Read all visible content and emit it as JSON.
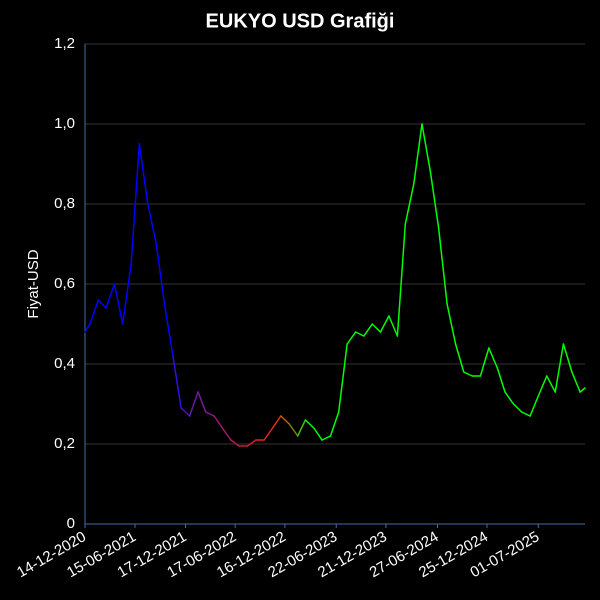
{
  "chart_data": {
    "type": "line",
    "title": "EUKYO USD Grafiği",
    "y_label": "Fiyat-USD",
    "x": [
      "14-12-2020",
      "01-01-2021",
      "01-02-2021",
      "01-03-2021",
      "01-04-2021",
      "01-05-2021",
      "01-06-2021",
      "01-07-2021",
      "01-08-2021",
      "01-09-2021",
      "01-10-2021",
      "01-11-2021",
      "01-12-2021",
      "01-01-2022",
      "01-02-2022",
      "01-03-2022",
      "01-04-2022",
      "01-05-2022",
      "01-06-2022",
      "01-07-2022",
      "01-08-2022",
      "01-09-2022",
      "01-10-2022",
      "01-11-2022",
      "01-12-2022",
      "01-01-2023",
      "01-02-2023",
      "01-03-2023",
      "01-04-2023",
      "01-05-2023",
      "01-06-2023",
      "01-07-2023",
      "01-08-2023",
      "01-09-2023",
      "01-10-2023",
      "01-11-2023",
      "01-12-2023",
      "01-01-2024",
      "01-02-2024",
      "01-03-2024",
      "01-04-2024",
      "01-05-2024",
      "01-06-2024",
      "01-07-2024",
      "01-08-2024",
      "01-09-2024",
      "01-10-2024",
      "01-11-2024",
      "01-12-2024",
      "01-01-2025",
      "01-02-2025",
      "01-03-2025",
      "01-04-2025",
      "01-05-2025",
      "01-06-2025",
      "01-07-2025",
      "01-08-2025",
      "01-09-2025",
      "01-10-2025",
      "01-11-2025",
      "01-12-2025",
      "19-12-2025"
    ],
    "values": [
      0.48,
      0.5,
      0.56,
      0.54,
      0.6,
      0.5,
      0.65,
      0.95,
      0.8,
      0.7,
      0.55,
      0.42,
      0.29,
      0.27,
      0.33,
      0.28,
      0.27,
      0.24,
      0.21,
      0.195,
      0.195,
      0.21,
      0.21,
      0.24,
      0.27,
      0.25,
      0.22,
      0.26,
      0.24,
      0.21,
      0.22,
      0.28,
      0.45,
      0.48,
      0.47,
      0.5,
      0.48,
      0.52,
      0.47,
      0.75,
      0.85,
      1.0,
      0.88,
      0.74,
      0.55,
      0.45,
      0.38,
      0.37,
      0.37,
      0.44,
      0.39,
      0.33,
      0.3,
      0.28,
      0.27,
      0.32,
      0.37,
      0.33,
      0.45,
      0.38,
      0.33,
      0.34
    ],
    "colors": [
      "#0000ff",
      "#0000ff",
      "#0000ff",
      "#0000ff",
      "#0000ff",
      "#0000ff",
      "#0000ff",
      "#0000ff",
      "#0000ff",
      "#0000ff",
      "#0000ff",
      "#3010e0",
      "#5010c0",
      "#6a18a8",
      "#7a1a9a",
      "#8a1a8a",
      "#9a1878",
      "#aa1868",
      "#ba1858",
      "#cc1840",
      "#dd1830",
      "#e81c20",
      "#f02018",
      "#e83018",
      "#c06010",
      "#808000",
      "#40c000",
      "#00ff00",
      "#00ff00",
      "#00ff00",
      "#00ff00",
      "#00ff00",
      "#00ff00",
      "#00ff00",
      "#00ff00",
      "#00ff00",
      "#00ff00",
      "#00ff00",
      "#00ff00",
      "#00ff00",
      "#00ff00",
      "#00ff00",
      "#00ff00",
      "#00ff00",
      "#00ff00",
      "#00ff00",
      "#00ff00",
      "#00ff00",
      "#00ff00",
      "#00ff00",
      "#00ff00",
      "#00ff00",
      "#00ff00",
      "#00ff00",
      "#00ff00",
      "#00ff00",
      "#00ff00",
      "#00ff00",
      "#00ff00",
      "#00ff00",
      "#00ff00",
      "#00ff00"
    ],
    "xlim": [
      "14-12-2020",
      "19-12-2025"
    ],
    "xticks": [
      "14-12-2020",
      "15-06-2021",
      "17-12-2021",
      "17-06-2022",
      "16-12-2022",
      "22-06-2023",
      "21-12-2023",
      "27-06-2024",
      "25-12-2024",
      "01-07-2025"
    ],
    "ylim": [
      0,
      1.2
    ],
    "yticks": [
      0,
      {
        "value": 0.2,
        "label": "0,2"
      },
      {
        "value": 0.4,
        "label": "0,4"
      },
      {
        "value": 0.6,
        "label": "0,6"
      },
      {
        "value": 0.8,
        "label": "0,8"
      },
      {
        "value": 1.0,
        "label": "1,0"
      },
      {
        "value": 1.2,
        "label": "1,2"
      }
    ],
    "grid": true
  }
}
